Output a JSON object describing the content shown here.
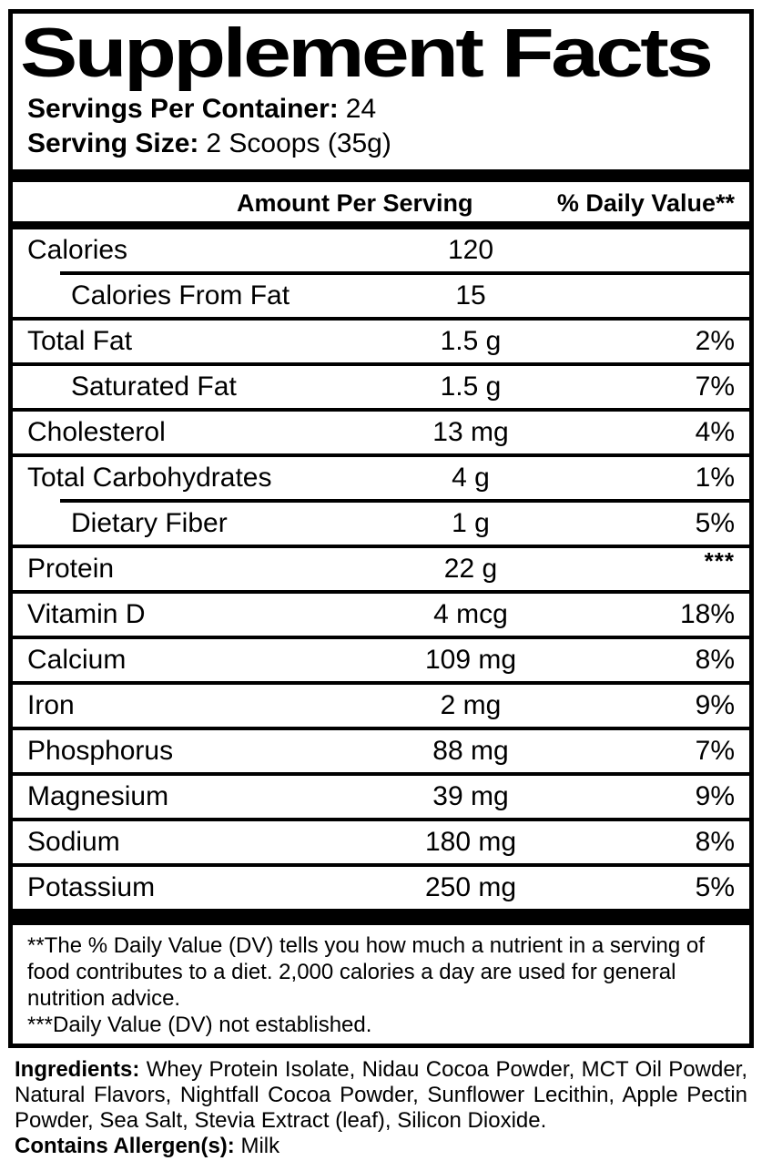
{
  "colors": {
    "ink": "#000000",
    "paper": "#ffffff"
  },
  "label": {
    "title": "Supplement Facts",
    "servings_per_container": {
      "label": "Servings Per Container:",
      "value": "24"
    },
    "serving_size": {
      "label": "Serving Size:",
      "value": "2 Scoops (35g)"
    },
    "columns": {
      "amount": "Amount Per Serving",
      "daily_value": "% Daily Value**"
    },
    "rows": [
      {
        "name": "Calories",
        "amount": "120",
        "dv": "",
        "indent": false,
        "sep": "none",
        "dv_super": false
      },
      {
        "name": "Calories From Fat",
        "amount": "15",
        "dv": "",
        "indent": true,
        "sep": "indent",
        "dv_super": false
      },
      {
        "name": "Total Fat",
        "amount": "1.5 g",
        "dv": "2%",
        "indent": false,
        "sep": "full",
        "dv_super": false
      },
      {
        "name": "Saturated Fat",
        "amount": "1.5 g",
        "dv": "7%",
        "indent": true,
        "sep": "full",
        "dv_super": false
      },
      {
        "name": "Cholesterol",
        "amount": "13 mg",
        "dv": "4%",
        "indent": false,
        "sep": "full",
        "dv_super": false
      },
      {
        "name": "Total Carbohydrates",
        "amount": "4 g",
        "dv": "1%",
        "indent": false,
        "sep": "full",
        "dv_super": false
      },
      {
        "name": "Dietary Fiber",
        "amount": "1 g",
        "dv": "5%",
        "indent": true,
        "sep": "indent",
        "dv_super": false
      },
      {
        "name": "Protein",
        "amount": "22 g",
        "dv": "***",
        "indent": false,
        "sep": "full",
        "dv_super": true
      },
      {
        "name": "Vitamin D",
        "amount": "4 mcg",
        "dv": "18%",
        "indent": false,
        "sep": "full",
        "dv_super": false
      },
      {
        "name": "Calcium",
        "amount": "109 mg",
        "dv": "8%",
        "indent": false,
        "sep": "full",
        "dv_super": false
      },
      {
        "name": "Iron",
        "amount": "2 mg",
        "dv": "9%",
        "indent": false,
        "sep": "full",
        "dv_super": false
      },
      {
        "name": "Phosphorus",
        "amount": "88 mg",
        "dv": "7%",
        "indent": false,
        "sep": "full",
        "dv_super": false
      },
      {
        "name": "Magnesium",
        "amount": "39 mg",
        "dv": "9%",
        "indent": false,
        "sep": "full",
        "dv_super": false
      },
      {
        "name": "Sodium",
        "amount": "180 mg",
        "dv": "8%",
        "indent": false,
        "sep": "full",
        "dv_super": false
      },
      {
        "name": "Potassium",
        "amount": "250 mg",
        "dv": "5%",
        "indent": false,
        "sep": "full",
        "dv_super": false
      }
    ],
    "footnotes": [
      "**The % Daily Value (DV) tells you how much a nutrient in a serving of food contributes to a diet. 2,000 calories a day are used for general nutrition advice.",
      "***Daily Value (DV) not established."
    ]
  },
  "ingredients": {
    "label": "Ingredients:",
    "list": "Whey Protein Isolate, Nidau Cocoa Powder, MCT Oil Powder, Natural Flavors, Nightfall Cocoa Powder, Sunflower Lecithin, Apple Pectin Powder, Sea Salt, Stevia Extract (leaf), Silicon Dioxide.",
    "allergen_label": "Contains Allergen(s):",
    "allergen_value": "Milk"
  }
}
